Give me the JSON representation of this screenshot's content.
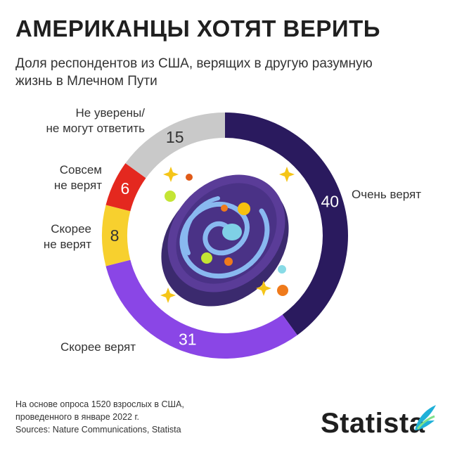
{
  "header": {
    "title": "АМЕРИКАНЦЫ ХОТЯТ ВЕРИТЬ",
    "subtitle": "Доля респондентов из США, верящих в другую разумную жизнь в Млечном Пути"
  },
  "chart_data": {
    "type": "pie",
    "donut": true,
    "title": "АМЕРИКАНЦЫ ХОТЯТ ВЕРИТЬ",
    "subtitle": "Доля респондентов из США, верящих в другую разумную жизнь в Млечном Пути",
    "slices": [
      {
        "label_lines": [
          "Очень верят"
        ],
        "value": 40,
        "color": "#2a1a5e"
      },
      {
        "label_lines": [
          "Скорее верят"
        ],
        "value": 31,
        "color": "#8a46e6"
      },
      {
        "label_lines": [
          "Скорее",
          "не верят"
        ],
        "value": 8,
        "color": "#f7d02e"
      },
      {
        "label_lines": [
          "Совсем",
          "не верят"
        ],
        "value": 6,
        "color": "#e4281f"
      },
      {
        "label_lines": [
          "Не уверены/",
          "не могут ответить"
        ],
        "value": 15,
        "color": "#c9c9c9"
      }
    ]
  },
  "footer": {
    "note_lines": [
      "На основе опроса 1520 взрослых в США,",
      "проведенного в январе 2022 г.",
      "Sources: Nature Communications, Statista"
    ],
    "brand": "Statista"
  },
  "colors": {
    "brand_accent": "#1fb0d8",
    "galaxy_outer": "#5a3c98",
    "galaxy_inner": "#3b2a6e",
    "spiral": "#89b9f0"
  },
  "icons": [
    "galaxy-icon",
    "sparkle-icon",
    "planet-icon",
    "statista-logo-icon"
  ]
}
